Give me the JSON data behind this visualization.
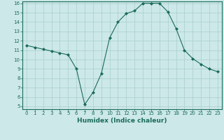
{
  "x_values": [
    0,
    1,
    2,
    3,
    4,
    5,
    6,
    7,
    8,
    9,
    10,
    11,
    12,
    13,
    14,
    15,
    16,
    17,
    18,
    19,
    20,
    21,
    22,
    23
  ],
  "y_values": [
    11.5,
    11.3,
    11.1,
    10.9,
    10.7,
    10.5,
    9.0,
    5.2,
    6.5,
    8.5,
    12.3,
    14.0,
    14.9,
    15.2,
    16.0,
    16.0,
    16.0,
    15.1,
    13.3,
    11.0,
    10.1,
    9.5,
    9.0,
    8.7
  ],
  "xlabel": "Humidex (Indice chaleur)",
  "line_color": "#1a6b5a",
  "marker": "D",
  "marker_size": 2.0,
  "bg_color": "#cce8e8",
  "grid_color": "#aacece",
  "ylim_min": 5,
  "ylim_max": 16,
  "xlim_min": 0,
  "xlim_max": 23,
  "yticks": [
    5,
    6,
    7,
    8,
    9,
    10,
    11,
    12,
    13,
    14,
    15,
    16
  ],
  "xticks": [
    0,
    1,
    2,
    3,
    4,
    5,
    6,
    7,
    8,
    9,
    10,
    11,
    12,
    13,
    14,
    15,
    16,
    17,
    18,
    19,
    20,
    21,
    22,
    23
  ],
  "tick_fontsize": 5.0,
  "xlabel_fontsize": 6.5,
  "linewidth": 0.8
}
